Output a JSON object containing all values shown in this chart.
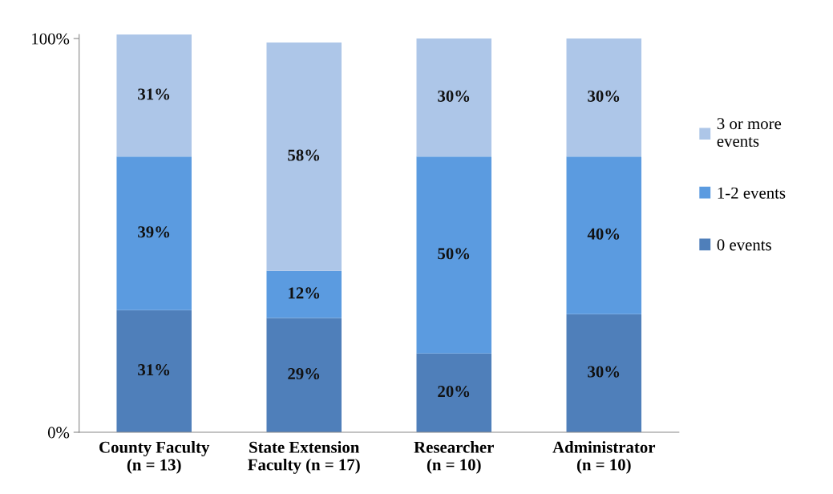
{
  "chart_data": {
    "type": "bar",
    "stacked": true,
    "categories": [
      "County Faculty\n(n = 13)",
      "State Extension\nFaculty (n = 17)",
      "Researcher\n(n = 10)",
      "Administrator\n(n = 10)"
    ],
    "series": [
      {
        "name": "0 events",
        "color": "#4f7fba",
        "values": [
          31,
          29,
          20,
          30
        ],
        "value_labels": [
          "31%",
          "29%",
          "20%",
          "30%"
        ]
      },
      {
        "name": "1-2 events",
        "color": "#5b9be0",
        "values": [
          39,
          12,
          50,
          40
        ],
        "value_labels": [
          "39%",
          "12%",
          "50%",
          "40%"
        ]
      },
      {
        "name": "3 or more\nevents",
        "color": "#adc6e8",
        "values": [
          31,
          58,
          30,
          30
        ],
        "value_labels": [
          "31%",
          "58%",
          "30%",
          "30%"
        ]
      }
    ],
    "ylim": [
      0,
      101
    ],
    "yticks": [
      {
        "value": 0,
        "label": "0%"
      },
      {
        "value": 100,
        "label": "100%"
      }
    ],
    "grid": false,
    "legend": "right"
  }
}
